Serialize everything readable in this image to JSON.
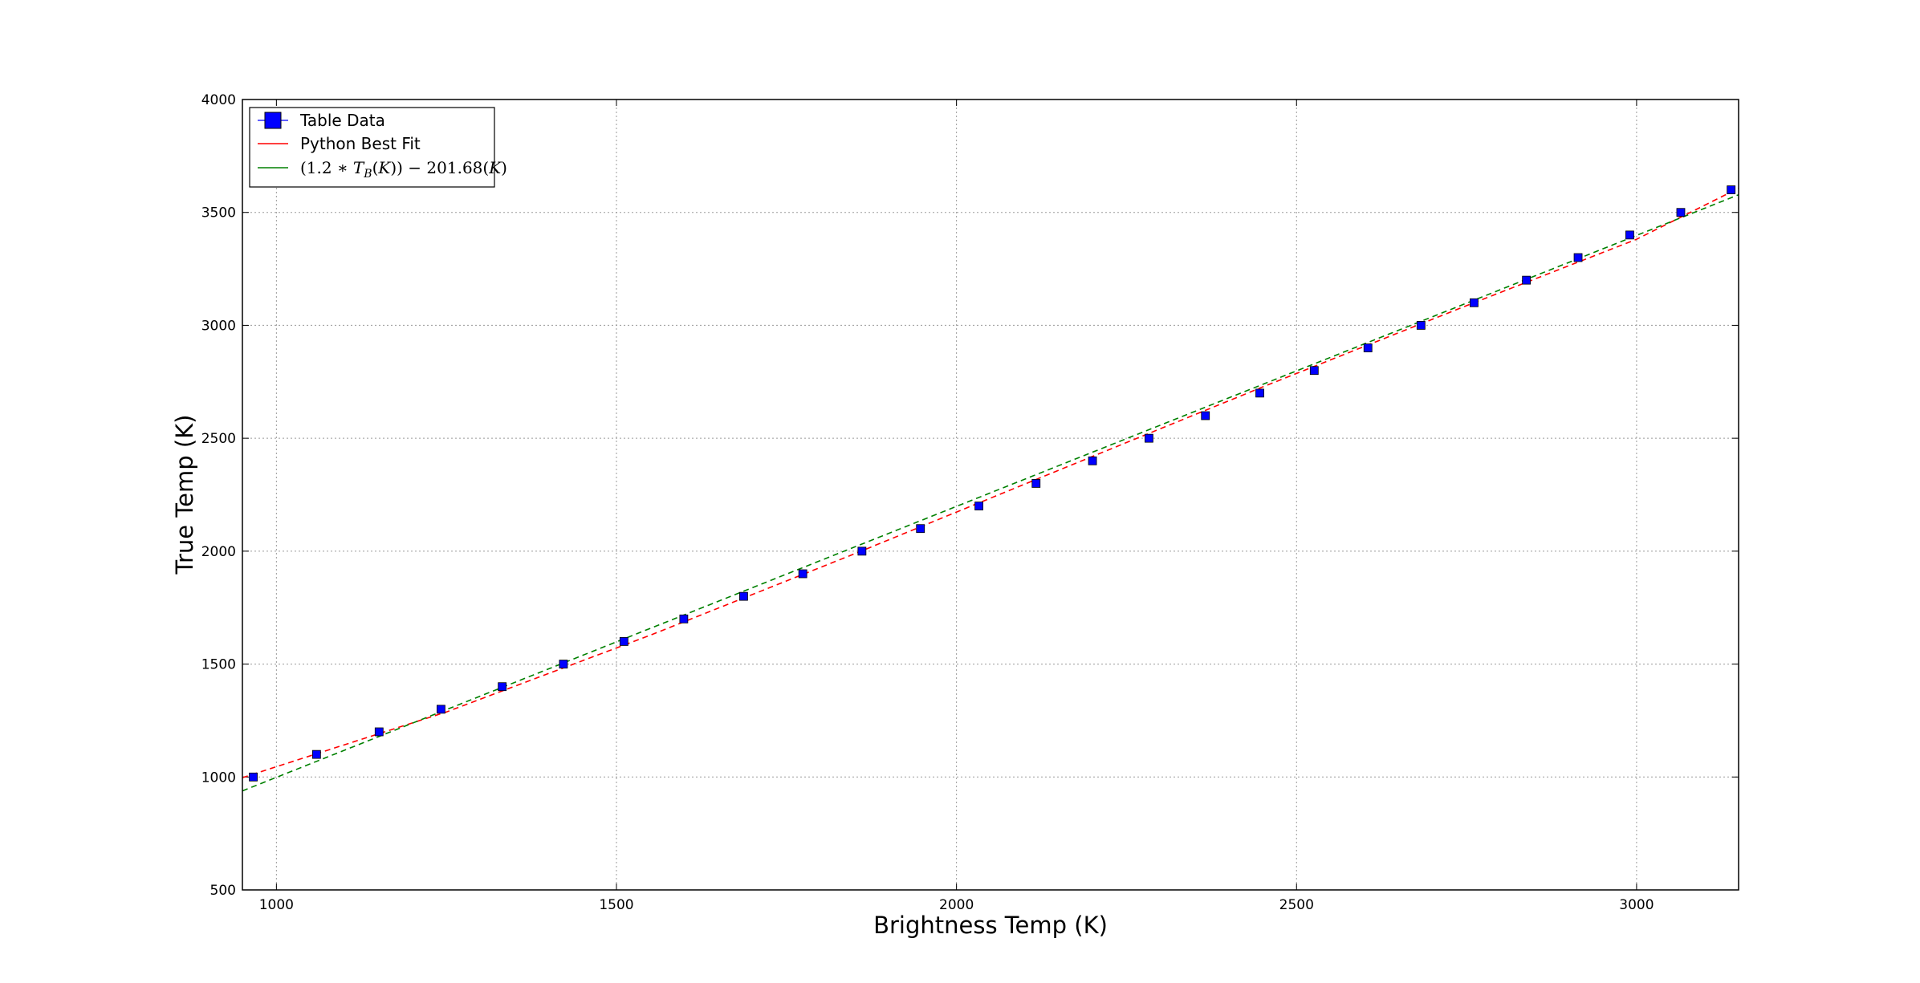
{
  "chart_data": {
    "type": "scatter",
    "title": "",
    "xlabel": "Brightness Temp (K)",
    "ylabel": "True Temp (K)",
    "xlim": [
      950,
      3150
    ],
    "ylim": [
      500,
      4000
    ],
    "xticks": [
      1000,
      1500,
      2000,
      2500,
      3000
    ],
    "yticks": [
      500,
      1000,
      1500,
      2000,
      2500,
      3000,
      3500,
      4000
    ],
    "grid": true,
    "legend_position": "top-left",
    "series": [
      {
        "name": "Table Data",
        "kind": "markers",
        "marker": "square",
        "color": "#0000ff",
        "x": [
          966,
          1059,
          1151,
          1242,
          1332,
          1422,
          1511,
          1599,
          1687,
          1774,
          1861,
          1947,
          2033,
          2117,
          2200,
          2283,
          2366,
          2446,
          2526,
          2605,
          2683,
          2761,
          2838,
          2914,
          2990,
          3065,
          3139
        ],
        "y": [
          1000,
          1100,
          1200,
          1300,
          1400,
          1500,
          1600,
          1700,
          1800,
          1900,
          2000,
          2100,
          2200,
          2300,
          2400,
          2500,
          2600,
          2700,
          2800,
          2900,
          3000,
          3100,
          3200,
          3300,
          3400,
          3500,
          3600
        ]
      },
      {
        "name": "Python Best Fit",
        "kind": "line",
        "dash": true,
        "color": "#ff0000",
        "x": [
          950,
          1250,
          1550,
          1850,
          2150,
          2450,
          2750,
          3000,
          3150
        ],
        "y": [
          997,
          1288,
          1628,
          1988,
          2358,
          2727,
          3087,
          3381,
          3607
        ]
      },
      {
        "name": "(1.2*T_B(K)) - 201.68(K)",
        "kind": "line",
        "dash": true,
        "color": "#008000",
        "x": [
          950,
          3150
        ],
        "y": [
          938.32,
          3578.32
        ]
      }
    ]
  }
}
